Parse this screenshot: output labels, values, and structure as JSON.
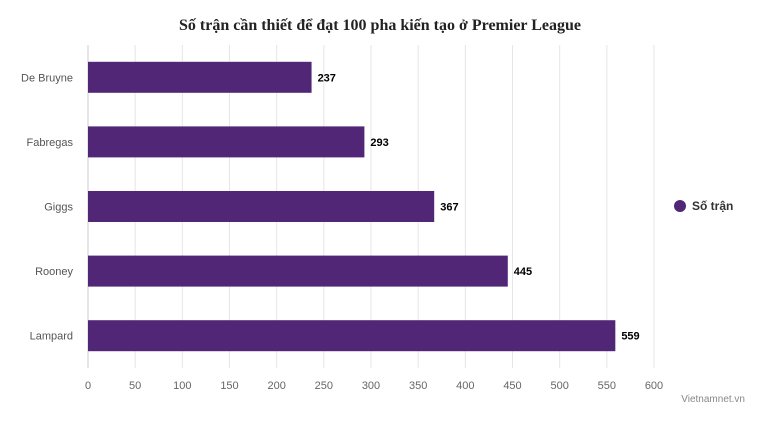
{
  "chart_data": {
    "type": "bar",
    "orientation": "horizontal",
    "title": "Số trận cần thiết để đạt 100 pha kiến tạo ở Premier League",
    "categories": [
      "De Bruyne",
      "Fabregas",
      "Giggs",
      "Rooney",
      "Lampard"
    ],
    "series": [
      {
        "name": "Số trận",
        "values": [
          237,
          293,
          367,
          445,
          559
        ],
        "color": "#512676"
      }
    ],
    "xlim": [
      0,
      600
    ],
    "xticks": [
      0,
      50,
      100,
      150,
      200,
      250,
      300,
      350,
      400,
      450,
      500,
      550,
      600
    ],
    "grid": true,
    "legend": "right",
    "data_labels": true
  },
  "credit": "Vietnamnet.vn"
}
